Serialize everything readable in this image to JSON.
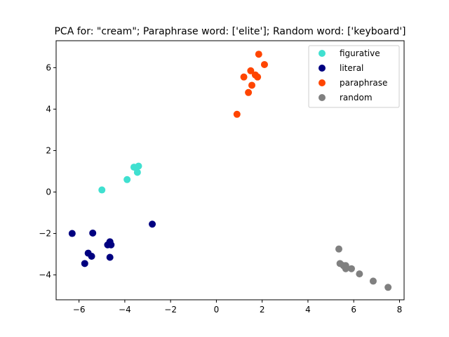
{
  "chart_data": {
    "type": "scatter",
    "title": "PCA for: \"cream\"; Paraphrase word: ['elite']; Random word: ['keyboard']",
    "xlabel": "",
    "ylabel": "",
    "xlim": [
      -7.0,
      8.2
    ],
    "ylim": [
      -5.2,
      7.3
    ],
    "xticks": [
      -6,
      -4,
      -2,
      0,
      2,
      4,
      6,
      8
    ],
    "yticks": [
      -4,
      -2,
      0,
      2,
      4,
      6
    ],
    "grid": false,
    "legend_position": "top-right",
    "series": [
      {
        "name": "figurative",
        "color": "#40e0d0",
        "points": [
          [
            -5.0,
            0.1
          ],
          [
            -3.9,
            0.6
          ],
          [
            -3.6,
            1.2
          ],
          [
            -3.4,
            1.25
          ],
          [
            -3.45,
            0.95
          ]
        ]
      },
      {
        "name": "literal",
        "color": "#000080",
        "points": [
          [
            -6.3,
            -2.0
          ],
          [
            -5.4,
            -1.98
          ],
          [
            -2.8,
            -1.55
          ],
          [
            -4.65,
            -2.4
          ],
          [
            -4.75,
            -2.55
          ],
          [
            -4.6,
            -2.55
          ],
          [
            -5.6,
            -2.95
          ],
          [
            -5.45,
            -3.1
          ],
          [
            -4.65,
            -3.15
          ],
          [
            -5.75,
            -3.45
          ]
        ]
      },
      {
        "name": "paraphrase",
        "color": "#ff4500",
        "points": [
          [
            1.85,
            6.65
          ],
          [
            2.1,
            6.15
          ],
          [
            1.5,
            5.85
          ],
          [
            1.2,
            5.55
          ],
          [
            1.7,
            5.65
          ],
          [
            1.8,
            5.55
          ],
          [
            1.55,
            5.15
          ],
          [
            1.4,
            4.8
          ],
          [
            0.9,
            3.75
          ]
        ]
      },
      {
        "name": "random",
        "color": "#808080",
        "points": [
          [
            5.35,
            -2.75
          ],
          [
            5.4,
            -3.45
          ],
          [
            5.55,
            -3.55
          ],
          [
            5.65,
            -3.55
          ],
          [
            5.65,
            -3.7
          ],
          [
            5.9,
            -3.7
          ],
          [
            6.25,
            -3.95
          ],
          [
            6.85,
            -4.3
          ],
          [
            7.5,
            -4.6
          ]
        ]
      }
    ]
  }
}
